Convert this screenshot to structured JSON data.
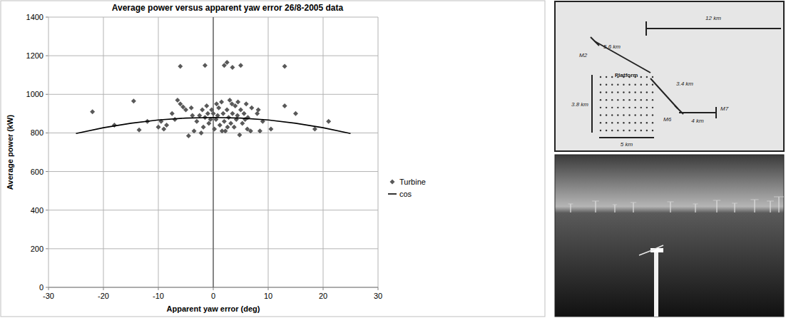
{
  "chart_data": {
    "type": "scatter",
    "title": "Average power versus apparent yaw error 26/8-2005 data",
    "x_label": "Apparent yaw error (deg)",
    "y_label": "Average power (kW)",
    "xlim": [
      -30,
      30
    ],
    "xticks": [
      -30,
      -20,
      -10,
      0,
      10,
      20,
      30
    ],
    "ylim": [
      0,
      1400
    ],
    "yticks": [
      0,
      200,
      400,
      600,
      800,
      1000,
      1200,
      1400
    ],
    "grid": true,
    "legend": "right",
    "series": [
      {
        "name": "Turbine",
        "type": "scatter",
        "marker": "diamond",
        "color": "#595959",
        "x": [
          -6,
          -1.5,
          2,
          2.5,
          3.5,
          5,
          13,
          -22,
          -18,
          -14.5,
          -13.5,
          -12,
          -9.5,
          -9,
          -8.5,
          -7,
          -6.5,
          -6,
          -5.5,
          -5,
          -4.5,
          -4,
          -3.5,
          -3,
          -2.5,
          -2,
          -1.8,
          -1.5,
          -1.2,
          -1,
          -0.8,
          -0.5,
          -0.3,
          0,
          0.2,
          0.5,
          0.8,
          1,
          1.2,
          1.5,
          1.8,
          2,
          2.2,
          2.5,
          2.8,
          3,
          3.2,
          3.5,
          3.8,
          4,
          4.2,
          4.5,
          4.8,
          5,
          5.3,
          5.6,
          6,
          6.3,
          6.8,
          7,
          8,
          8.5,
          9,
          10.5,
          13,
          15,
          18.5,
          21,
          -10,
          -7.5,
          -2.2,
          0.6,
          2.6,
          4.4,
          6.2,
          8.2,
          -3.8,
          1.6,
          3.4,
          5.8
        ],
        "values": [
          1145,
          1150,
          1150,
          1165,
          1140,
          1150,
          1145,
          910,
          840,
          965,
          815,
          860,
          860,
          820,
          840,
          870,
          970,
          950,
          935,
          920,
          785,
          930,
          810,
          860,
          890,
          920,
          830,
          880,
          940,
          900,
          850,
          870,
          920,
          900,
          820,
          870,
          890,
          930,
          840,
          960,
          900,
          860,
          810,
          920,
          880,
          970,
          850,
          900,
          830,
          940,
          870,
          960,
          790,
          920,
          850,
          900,
          950,
          880,
          810,
          930,
          900,
          810,
          860,
          820,
          940,
          900,
          820,
          860,
          830,
          900,
          800,
          950,
          830,
          890,
          820,
          920,
          890,
          810,
          950,
          870
        ]
      },
      {
        "name": "cos",
        "type": "line",
        "line_style": "solid",
        "color": "#000000",
        "x": [
          -25,
          -20,
          -15,
          -10,
          -5,
          0,
          5,
          10,
          15,
          20,
          25
        ],
        "values": [
          797,
          827,
          850,
          867,
          877,
          880,
          877,
          867,
          850,
          827,
          797
        ]
      }
    ]
  },
  "map": {
    "scale_bar": "12 km",
    "stations": [
      "M2",
      "Platform",
      "M6",
      "M7"
    ],
    "distances": [
      "5.6 km",
      "3.4 km",
      "4 km"
    ],
    "farm_height": "3.8 km",
    "farm_width": "5 km",
    "turbine_rows": 8,
    "turbine_columns": 10
  }
}
